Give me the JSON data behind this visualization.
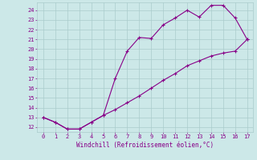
{
  "xlabel": "Windchill (Refroidissement éolien,°C)",
  "upper_x": [
    0,
    1,
    2,
    3,
    4,
    5,
    6,
    7,
    8,
    9,
    10,
    11,
    12,
    13,
    14,
    15,
    16,
    17
  ],
  "upper_y": [
    13,
    12.5,
    11.8,
    11.8,
    12.5,
    13.2,
    17.0,
    19.8,
    21.2,
    21.1,
    22.5,
    23.2,
    24.0,
    23.3,
    24.5,
    24.5,
    23.2,
    21.0
  ],
  "lower_x": [
    0,
    1,
    2,
    3,
    4,
    5,
    6,
    7,
    8,
    9,
    10,
    11,
    12,
    13,
    14,
    15,
    16,
    17
  ],
  "lower_y": [
    13,
    12.5,
    11.8,
    11.8,
    12.5,
    13.2,
    13.8,
    14.5,
    15.2,
    16.0,
    16.8,
    17.5,
    18.3,
    18.8,
    19.3,
    19.6,
    19.8,
    21.0
  ],
  "xlim": [
    -0.5,
    17.5
  ],
  "ylim": [
    11.5,
    24.8
  ],
  "yticks": [
    12,
    13,
    14,
    15,
    16,
    17,
    18,
    19,
    20,
    21,
    22,
    23,
    24
  ],
  "xticks": [
    0,
    1,
    2,
    3,
    4,
    5,
    6,
    7,
    8,
    9,
    10,
    11,
    12,
    13,
    14,
    15,
    16,
    17
  ],
  "line_color": "#880088",
  "bg_color": "#cce8e8",
  "grid_color": "#aacccc",
  "tick_color": "#880088",
  "label_color": "#880088"
}
